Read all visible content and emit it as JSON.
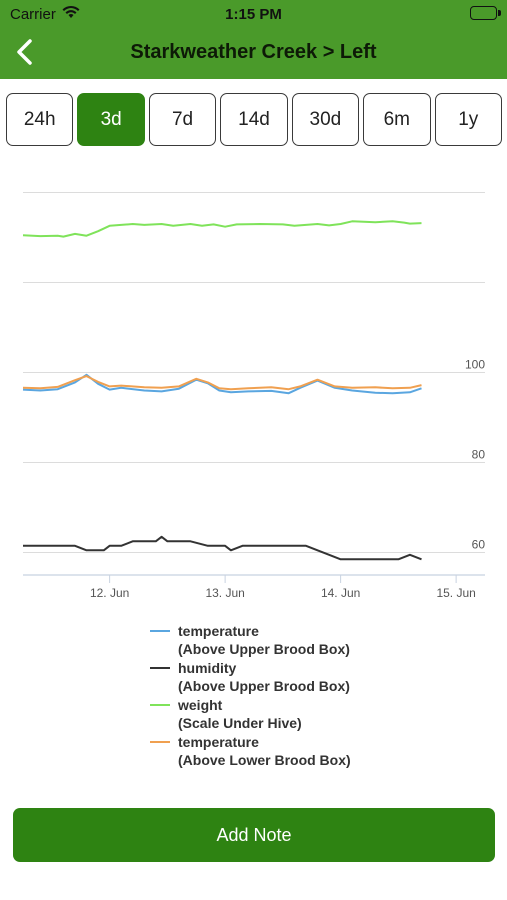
{
  "status_bar": {
    "carrier": "Carrier",
    "time": "1:15 PM"
  },
  "nav": {
    "title": "Starkweather Creek > Left"
  },
  "range_options": [
    {
      "label": "24h",
      "selected": false
    },
    {
      "label": "3d",
      "selected": true
    },
    {
      "label": "7d",
      "selected": false
    },
    {
      "label": "14d",
      "selected": false
    },
    {
      "label": "30d",
      "selected": false
    },
    {
      "label": "6m",
      "selected": false
    },
    {
      "label": "1y",
      "selected": false
    }
  ],
  "chart_data": {
    "type": "line",
    "x_tick_labels": [
      "12. Jun",
      "13. Jun",
      "14. Jun",
      "15. Jun"
    ],
    "x_range": [
      11.25,
      15.25
    ],
    "y_tick_labels": [
      "60",
      "80",
      "100"
    ],
    "y_range": [
      55,
      145
    ],
    "grid": "horizontal",
    "legend_position": "bottom",
    "series": [
      {
        "name": "temperature",
        "sub": "(Above Upper Brood Box)",
        "color": "#5aa6e0",
        "x": [
          11.25,
          11.4,
          11.55,
          11.7,
          11.8,
          11.9,
          12.0,
          12.1,
          12.3,
          12.45,
          12.6,
          12.75,
          12.85,
          12.95,
          13.05,
          13.2,
          13.4,
          13.55,
          13.65,
          13.8,
          13.95,
          14.1,
          14.3,
          14.45,
          14.6,
          14.7
        ],
        "y": [
          96.2,
          96.0,
          96.3,
          97.8,
          99.5,
          97.5,
          96.2,
          96.6,
          96.0,
          95.8,
          96.4,
          98.4,
          97.6,
          96.0,
          95.6,
          95.8,
          95.9,
          95.4,
          96.6,
          98.2,
          96.6,
          96.0,
          95.5,
          95.4,
          95.6,
          96.5
        ]
      },
      {
        "name": "humidity",
        "sub": "(Above Upper Brood Box)",
        "color": "#333333",
        "x": [
          11.25,
          11.5,
          11.7,
          11.8,
          11.95,
          12.0,
          12.1,
          12.2,
          12.4,
          12.45,
          12.5,
          12.7,
          12.85,
          13.0,
          13.05,
          13.15,
          13.25,
          13.5,
          13.7,
          13.8,
          13.9,
          14.0,
          14.2,
          14.4,
          14.5,
          14.6,
          14.7
        ],
        "y": [
          61.5,
          61.5,
          61.5,
          60.5,
          60.5,
          61.5,
          61.5,
          62.5,
          62.5,
          63.5,
          62.5,
          62.5,
          61.5,
          61.5,
          60.5,
          61.5,
          61.5,
          61.5,
          61.5,
          60.5,
          59.5,
          58.5,
          58.5,
          58.5,
          58.5,
          59.5,
          58.5
        ]
      },
      {
        "name": "weight",
        "sub": "(Scale Under Hive)",
        "color": "#7fe35a",
        "x": [
          11.25,
          11.4,
          11.55,
          11.6,
          11.7,
          11.8,
          11.9,
          12.0,
          12.1,
          12.2,
          12.3,
          12.45,
          12.55,
          12.7,
          12.8,
          12.9,
          13.0,
          13.1,
          13.3,
          13.5,
          13.6,
          13.8,
          13.9,
          14.0,
          14.1,
          14.2,
          14.3,
          14.45,
          14.55,
          14.6,
          14.7
        ],
        "y": [
          130.5,
          130.3,
          130.4,
          130.2,
          130.8,
          130.4,
          131.4,
          132.6,
          132.8,
          133.0,
          132.8,
          133.0,
          132.6,
          133.0,
          132.6,
          132.9,
          132.4,
          132.9,
          133.0,
          132.9,
          132.6,
          133.0,
          132.7,
          133.0,
          133.6,
          133.5,
          133.4,
          133.6,
          133.3,
          133.1,
          133.2
        ]
      },
      {
        "name": "temperature",
        "sub": "(Above Lower Brood Box)",
        "color": "#f0a050",
        "x": [
          11.25,
          11.4,
          11.55,
          11.7,
          11.8,
          11.9,
          12.0,
          12.1,
          12.3,
          12.45,
          12.6,
          12.75,
          12.85,
          12.95,
          13.05,
          13.2,
          13.4,
          13.55,
          13.65,
          13.8,
          13.95,
          14.1,
          14.3,
          14.45,
          14.6,
          14.7
        ],
        "y": [
          96.6,
          96.5,
          96.8,
          98.3,
          99.2,
          97.9,
          96.9,
          97.1,
          96.7,
          96.6,
          96.9,
          98.6,
          97.8,
          96.5,
          96.3,
          96.5,
          96.7,
          96.3,
          96.9,
          98.4,
          96.9,
          96.6,
          96.7,
          96.5,
          96.6,
          97.2
        ]
      }
    ]
  },
  "actions": {
    "add_note": "Add Note"
  }
}
